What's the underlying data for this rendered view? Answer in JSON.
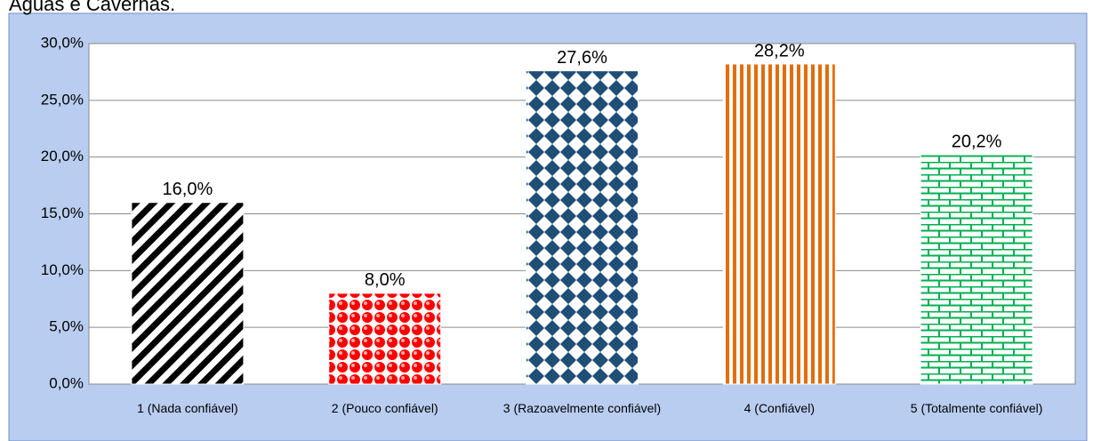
{
  "chart_data": {
    "type": "bar",
    "title": "Águas e Cavernas.",
    "categories": [
      "1 (Nada confiável)",
      "2 (Pouco confiável)",
      "3 (Razoavelmente confiável)",
      "4 (Confiável)",
      "5 (Totalmente confiável)"
    ],
    "values": [
      16.0,
      8.0,
      27.6,
      28.2,
      20.2
    ],
    "value_labels": [
      "16,0%",
      "8,0%",
      "27,6%",
      "28,2%",
      "20,2%"
    ],
    "colors": [
      "#000000",
      "#ff0000",
      "#1f4e79",
      "#e46c0a",
      "#00b050"
    ],
    "ylim": [
      0,
      30
    ],
    "yticks": [
      {
        "value": 0,
        "label": "0,0%"
      },
      {
        "value": 5,
        "label": "5,0%"
      },
      {
        "value": 10,
        "label": "10,0%"
      },
      {
        "value": 15,
        "label": "15,0%"
      },
      {
        "value": 20,
        "label": "20,0%"
      },
      {
        "value": 25,
        "label": "25,0%"
      },
      {
        "value": 30,
        "label": "30,0%"
      }
    ],
    "grid": true
  }
}
